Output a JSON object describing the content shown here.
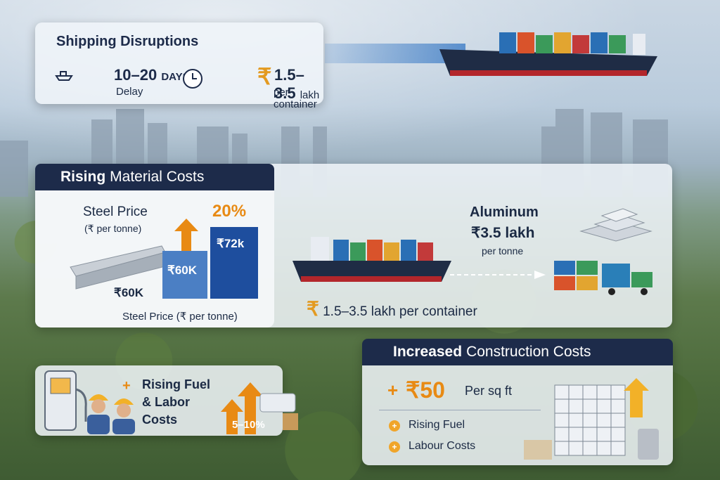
{
  "shipping": {
    "title": "Shipping Disruptions",
    "days_value": "10–20",
    "days_unit": "DAYS",
    "delay_label": "Delay",
    "cost_value": "1.5–3.5",
    "cost_unit_inline": "lakh",
    "cost_unit": "per container",
    "rupee": "₹"
  },
  "material": {
    "title_bold": "Rising",
    "title_rest": "Material Costs",
    "steel_label": "Steel Price",
    "steel_unit": "(₹ per tonne)",
    "increase_pct": "20%",
    "bar_values": [
      "₹60K",
      "₹60K",
      "₹72k"
    ],
    "steel_caption": "Steel Price (₹ per tonne)",
    "aluminum_title": "Aluminum",
    "aluminum_price": "₹3.5 lakh",
    "aluminum_unit": "per tonne",
    "container_rupee": "₹",
    "container_cost": "1.5–3.5 lakh per container"
  },
  "fuel": {
    "plus": "+",
    "line1": "Rising Fuel",
    "line2": "& Labor",
    "line3": "Costs",
    "pct": "5–10%"
  },
  "construction": {
    "title_bold": "Increased",
    "title_rest": "Construction Costs",
    "plus": "+",
    "value": "₹50",
    "unit": "Per sq ft",
    "items": [
      "Rising Fuel",
      "Labour Costs"
    ],
    "bullet": "+"
  },
  "colors": {
    "navy": "#1d2b4a",
    "orange": "#e88a14",
    "blue": "#1e4e9e"
  }
}
